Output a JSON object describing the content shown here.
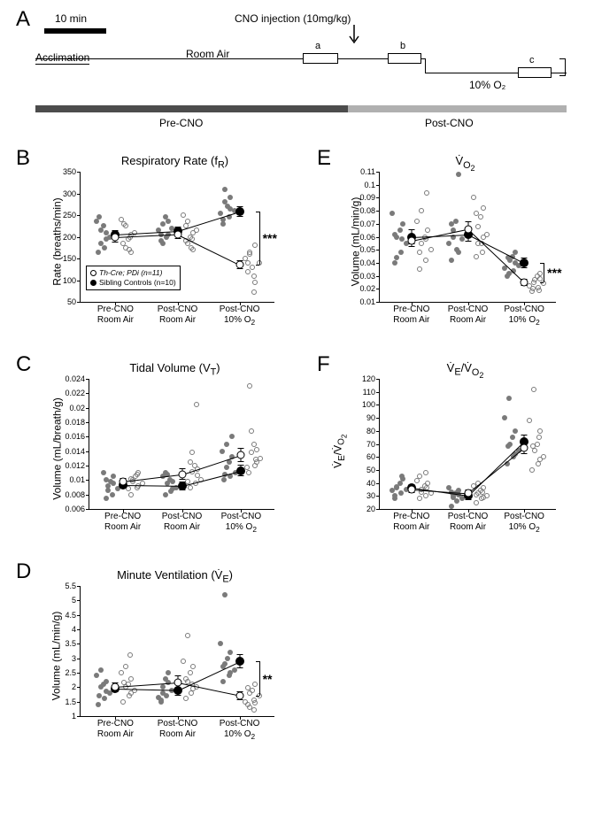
{
  "colors": {
    "bg": "#ffffff",
    "fg": "#000000",
    "scatter": "#7a7a7a",
    "preBar": "#4c4c4c",
    "postBar": "#b0b0b0"
  },
  "font": {
    "letter": 24,
    "title": 13,
    "axis": 12,
    "tick": 9,
    "cat": 10,
    "legend": 8.5
  },
  "categories": [
    "Pre-CNO\nRoom Air",
    "Post-CNO\nRoom Air",
    "Post-CNO\n10% O₂"
  ],
  "legend": {
    "open": "Th-Cre; PDi (n=11)",
    "solid": "Sibling Controls (n=10)"
  },
  "panelA": {
    "scaleLabel": "10 min",
    "labels": {
      "accl": "Acclimation",
      "room": "Room Air",
      "o2": "10% O₂",
      "inj": "CNO injection (10mg/kg)",
      "pre": "Pre-CNO",
      "post": "Post-CNO",
      "a": "a",
      "b": "b",
      "c": "c"
    },
    "scaleBarLen": 70
  },
  "panelB": {
    "title": "Respiratory Rate (f_R)",
    "ylabel": "Rate (breaths/min)",
    "ylim": [
      50,
      350
    ],
    "yticks": [
      50,
      100,
      150,
      200,
      250,
      300,
      350
    ],
    "open_means": [
      198,
      205,
      135
    ],
    "open_err": [
      12,
      10,
      10
    ],
    "solid_means": [
      205,
      213,
      258
    ],
    "solid_err": [
      10,
      10,
      12
    ],
    "sig": "***",
    "jitter_open": [
      [
        185,
        170,
        210,
        225,
        195,
        205,
        240,
        175,
        165,
        230,
        200
      ],
      [
        190,
        175,
        215,
        235,
        200,
        210,
        250,
        185,
        170,
        225,
        195
      ],
      [
        120,
        110,
        140,
        165,
        130,
        95,
        150,
        160,
        180,
        140,
        72
      ]
    ],
    "jitter_solid": [
      [
        165,
        175,
        200,
        215,
        225,
        195,
        235,
        185,
        210,
        245
      ],
      [
        190,
        200,
        220,
        230,
        245,
        205,
        215,
        185,
        235,
        205
      ],
      [
        230,
        245,
        260,
        310,
        270,
        265,
        255,
        280,
        290,
        240
      ]
    ]
  },
  "panelC": {
    "title": "Tidal Volume (V_T)",
    "ylabel": "Volume (mL/breath/g)",
    "ylim": [
      0.006,
      0.024
    ],
    "yticks": [
      0.006,
      0.008,
      0.01,
      0.012,
      0.014,
      0.016,
      0.018,
      0.02,
      0.022,
      0.024
    ],
    "open_means": [
      0.0098,
      0.0108,
      0.0135
    ],
    "open_err": [
      0.0005,
      0.0008,
      0.001
    ],
    "solid_means": [
      0.0093,
      0.0092,
      0.0113
    ],
    "solid_err": [
      0.0004,
      0.0006,
      0.0008
    ],
    "jitter_open": [
      [
        0.008,
        0.009,
        0.0095,
        0.01,
        0.0105,
        0.011,
        0.0088,
        0.0098,
        0.0092,
        0.0102,
        0.0108
      ],
      [
        0.009,
        0.0095,
        0.01,
        0.0112,
        0.012,
        0.0106,
        0.0098,
        0.0138,
        0.0115,
        0.0125,
        0.0205
      ],
      [
        0.011,
        0.012,
        0.013,
        0.0138,
        0.015,
        0.0142,
        0.0118,
        0.0168,
        0.0125,
        0.023,
        0.0128
      ]
    ],
    "jitter_solid": [
      [
        0.0075,
        0.008,
        0.0088,
        0.0092,
        0.0098,
        0.0105,
        0.011,
        0.0086,
        0.0095,
        0.01
      ],
      [
        0.008,
        0.0085,
        0.009,
        0.0095,
        0.01,
        0.0098,
        0.0105,
        0.0108,
        0.0088,
        0.011
      ],
      [
        0.01,
        0.0105,
        0.011,
        0.0118,
        0.0125,
        0.0132,
        0.014,
        0.015,
        0.016,
        0.0108
      ]
    ]
  },
  "panelD": {
    "title": "Minute Ventilation (V̇_E)",
    "ylabel": "Volume (mL/min/g)",
    "ylim": [
      1.0,
      5.5
    ],
    "yticks": [
      1.0,
      1.5,
      2.0,
      2.5,
      3.0,
      3.5,
      4.0,
      4.5,
      5.0,
      5.5
    ],
    "open_means": [
      2.0,
      2.15,
      1.7
    ],
    "open_err": [
      0.15,
      0.25,
      0.15
    ],
    "solid_means": [
      1.95,
      1.9,
      2.9
    ],
    "solid_err": [
      0.12,
      0.2,
      0.25
    ],
    "sig": "**",
    "jitter_open": [
      [
        1.5,
        1.7,
        1.9,
        2.0,
        2.1,
        2.3,
        2.5,
        2.7,
        1.8,
        2.15,
        3.1
      ],
      [
        1.6,
        1.8,
        2.0,
        2.2,
        2.5,
        2.7,
        2.9,
        3.8,
        1.95,
        2.3,
        2.1
      ],
      [
        1.4,
        1.55,
        1.7,
        1.8,
        1.9,
        2.1,
        1.5,
        1.3,
        1.45,
        1.98,
        1.2
      ]
    ],
    "jitter_solid": [
      [
        1.4,
        1.6,
        1.8,
        2.0,
        2.1,
        2.2,
        2.4,
        2.6,
        1.85,
        1.7
      ],
      [
        1.5,
        1.7,
        1.9,
        2.0,
        2.3,
        2.5,
        1.65,
        1.8,
        2.15,
        1.55
      ],
      [
        2.2,
        2.4,
        2.6,
        2.8,
        3.0,
        3.2,
        3.5,
        5.2,
        2.5,
        2.7
      ]
    ]
  },
  "panelE": {
    "title": "V̇_O₂",
    "ylabel": "Volume (mL/min/g)",
    "ylim": [
      0.01,
      0.11
    ],
    "yticks": [
      0.01,
      0.02,
      0.03,
      0.04,
      0.05,
      0.06,
      0.07,
      0.08,
      0.09,
      0.1,
      0.11
    ],
    "open_means": [
      0.057,
      0.066,
      0.025
    ],
    "open_err": [
      0.005,
      0.006,
      0.003
    ],
    "solid_means": [
      0.06,
      0.062,
      0.04
    ],
    "solid_err": [
      0.006,
      0.006,
      0.004
    ],
    "sig": "***",
    "jitter_open": [
      [
        0.035,
        0.042,
        0.05,
        0.055,
        0.06,
        0.065,
        0.072,
        0.08,
        0.094,
        0.048,
        0.058
      ],
      [
        0.045,
        0.055,
        0.062,
        0.068,
        0.075,
        0.082,
        0.09,
        0.055,
        0.06,
        0.078,
        0.048
      ],
      [
        0.018,
        0.021,
        0.024,
        0.027,
        0.03,
        0.032,
        0.022,
        0.025,
        0.028,
        0.02,
        0.019
      ]
    ],
    "jitter_solid": [
      [
        0.04,
        0.048,
        0.055,
        0.06,
        0.065,
        0.07,
        0.078,
        0.044,
        0.058,
        0.062
      ],
      [
        0.042,
        0.05,
        0.058,
        0.065,
        0.072,
        0.108,
        0.055,
        0.06,
        0.048,
        0.07
      ],
      [
        0.03,
        0.034,
        0.038,
        0.042,
        0.045,
        0.048,
        0.036,
        0.032,
        0.04,
        0.044
      ]
    ]
  },
  "panelF": {
    "title": "V̇_E/V̇_O₂",
    "ylabel": "V̇_E/V̇_O₂",
    "ylim": [
      20,
      120
    ],
    "yticks": [
      20,
      30,
      40,
      50,
      60,
      70,
      80,
      90,
      100,
      110,
      120
    ],
    "open_means": [
      35,
      32,
      67
    ],
    "open_err": [
      3,
      3,
      5
    ],
    "solid_means": [
      36,
      30,
      72
    ],
    "solid_err": [
      3,
      3,
      5
    ],
    "jitter_open": [
      [
        28,
        30,
        32,
        35,
        38,
        40,
        42,
        33,
        36,
        45,
        48
      ],
      [
        25,
        28,
        30,
        32,
        34,
        36,
        38,
        40,
        29,
        31,
        33
      ],
      [
        50,
        55,
        60,
        65,
        70,
        80,
        88,
        112,
        58,
        68,
        75
      ]
    ],
    "jitter_solid": [
      [
        30,
        32,
        35,
        37,
        40,
        43,
        34,
        36,
        45,
        28
      ],
      [
        22,
        26,
        28,
        30,
        32,
        34,
        36,
        29,
        31,
        33
      ],
      [
        55,
        60,
        65,
        70,
        75,
        80,
        90,
        105,
        62,
        68
      ]
    ]
  }
}
